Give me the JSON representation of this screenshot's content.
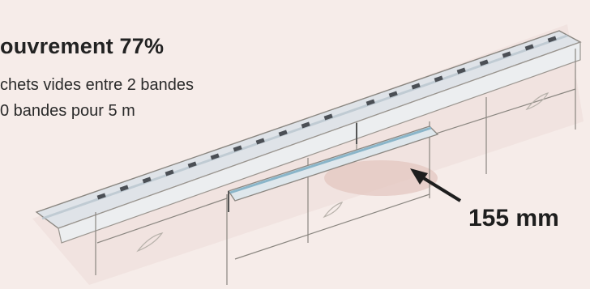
{
  "texts": {
    "heading": "ouvrement 77%",
    "line1": "chets vides entre 2 bandes",
    "line2": "0 bandes pour 5 m",
    "dimension": "155 mm"
  },
  "colors": {
    "background": "#f6ece9",
    "ink": "#222222",
    "sketch_line": "#8a8680",
    "slat_top": "#d9dde3",
    "blue_strip": "#8ab5c9",
    "shadow_tint": "#e3c4bd"
  }
}
